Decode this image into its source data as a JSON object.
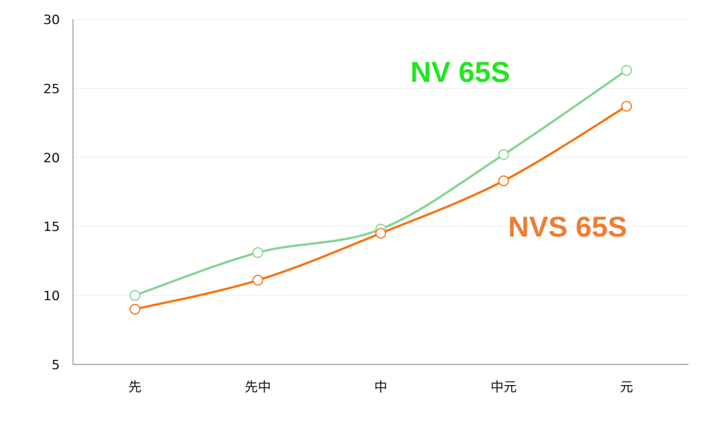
{
  "chart_data": {
    "type": "line",
    "categories": [
      "先",
      "先中",
      "中",
      "中元",
      "元"
    ],
    "ylim": [
      5,
      30
    ],
    "yticks": [
      5,
      10,
      15,
      20,
      25,
      30
    ],
    "grid": true,
    "series": [
      {
        "name": "NV 65S",
        "color": "#82d495",
        "label_color": "#1fe71f",
        "values": [
          10.0,
          13.1,
          14.8,
          20.2,
          26.3
        ]
      },
      {
        "name": "NVS 65S",
        "color": "#f7720e",
        "label_color": "#ef7d32",
        "values": [
          9.0,
          11.1,
          14.5,
          18.3,
          23.7
        ]
      }
    ]
  }
}
